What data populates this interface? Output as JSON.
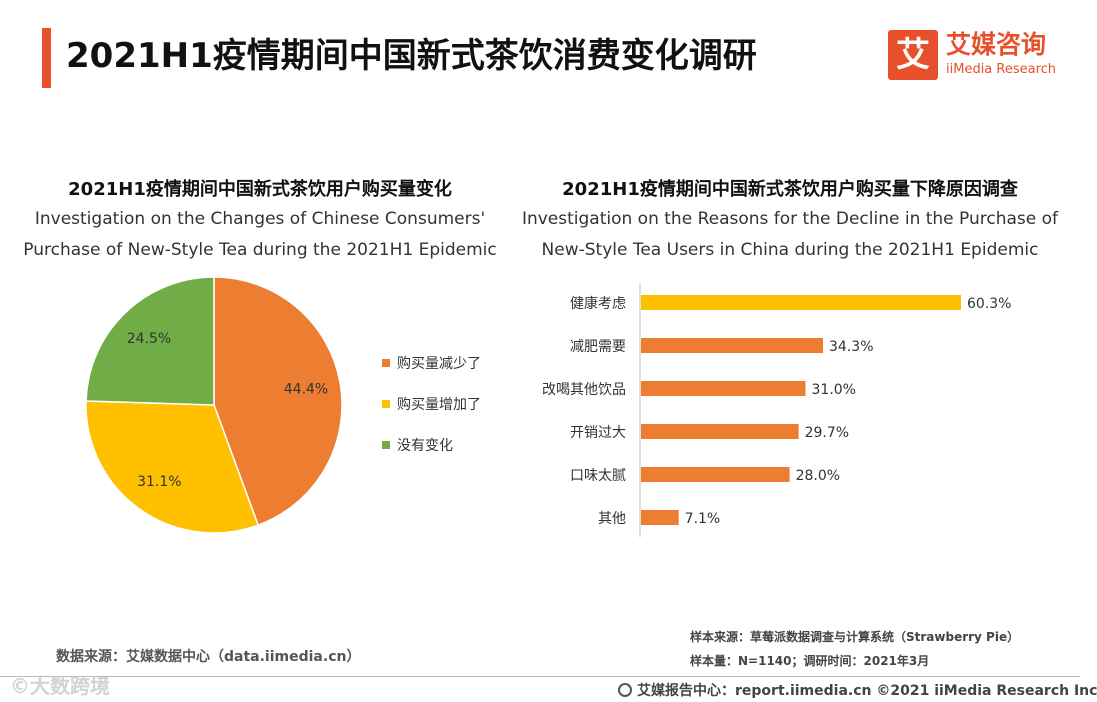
{
  "page": {
    "title": "2021H1疫情期间中国新式茶饮消费变化调研"
  },
  "logo": {
    "mark": "艾",
    "name_cn": "艾媒咨询",
    "name_en": "iiMedia Research"
  },
  "colors": {
    "accent": "#e8502c",
    "orange": "#ed7d31",
    "yellow": "#ffc000",
    "green": "#70ad47"
  },
  "left_chart": {
    "title_cn": "2021H1疫情期间中国新式茶饮用户购买量变化",
    "title_en_1": "Investigation on the Changes of Chinese Consumers'",
    "title_en_2": "Purchase of New-Style Tea during the 2021H1 Epidemic"
  },
  "right_chart": {
    "title_cn": "2021H1疫情期间中国新式茶饮用户购买量下降原因调查",
    "title_en_1": "Investigation on the Reasons for the Decline in the Purchase of",
    "title_en_2": "New-Style Tea Users in China during the 2021H1 Epidemic"
  },
  "chart_data": [
    {
      "type": "pie",
      "title": "2021H1疫情期间中国新式茶饮用户购买量变化",
      "categories": [
        "购买量减少了",
        "购买量增加了",
        "没有变化"
      ],
      "values": [
        44.4,
        31.1,
        24.5
      ],
      "value_labels": [
        "44.4%",
        "31.1%",
        "24.5%"
      ],
      "colors": [
        "#ed7d31",
        "#ffc000",
        "#70ad47"
      ],
      "legend_position": "right"
    },
    {
      "type": "bar",
      "orientation": "horizontal",
      "title": "2021H1疫情期间中国新式茶饮用户购买量下降原因调查",
      "categories": [
        "健康考虑",
        "减肥需要",
        "改喝其他饮品",
        "开销过大",
        "口味太腻",
        "其他"
      ],
      "values": [
        60.3,
        34.3,
        31.0,
        29.7,
        28.0,
        7.1
      ],
      "value_labels": [
        "60.3%",
        "34.3%",
        "31.0%",
        "29.7%",
        "28.0%",
        "7.1%"
      ],
      "colors": [
        "#ffc000",
        "#ed7d31",
        "#ed7d31",
        "#ed7d31",
        "#ed7d31",
        "#ed7d31"
      ],
      "xlim": [
        0,
        60.3
      ]
    }
  ],
  "footer": {
    "source_left": "数据来源：艾媒数据中心（data.iimedia.cn）",
    "sample_source": "样本来源：草莓派数据调查与计算系统（Strawberry Pie）",
    "sample_size": "样本量：N=1140；调研时间：2021年3月",
    "site": "艾媒报告中心：report.iimedia.cn  ©2021  iiMedia Research  Inc",
    "watermark": "©大数跨境"
  }
}
